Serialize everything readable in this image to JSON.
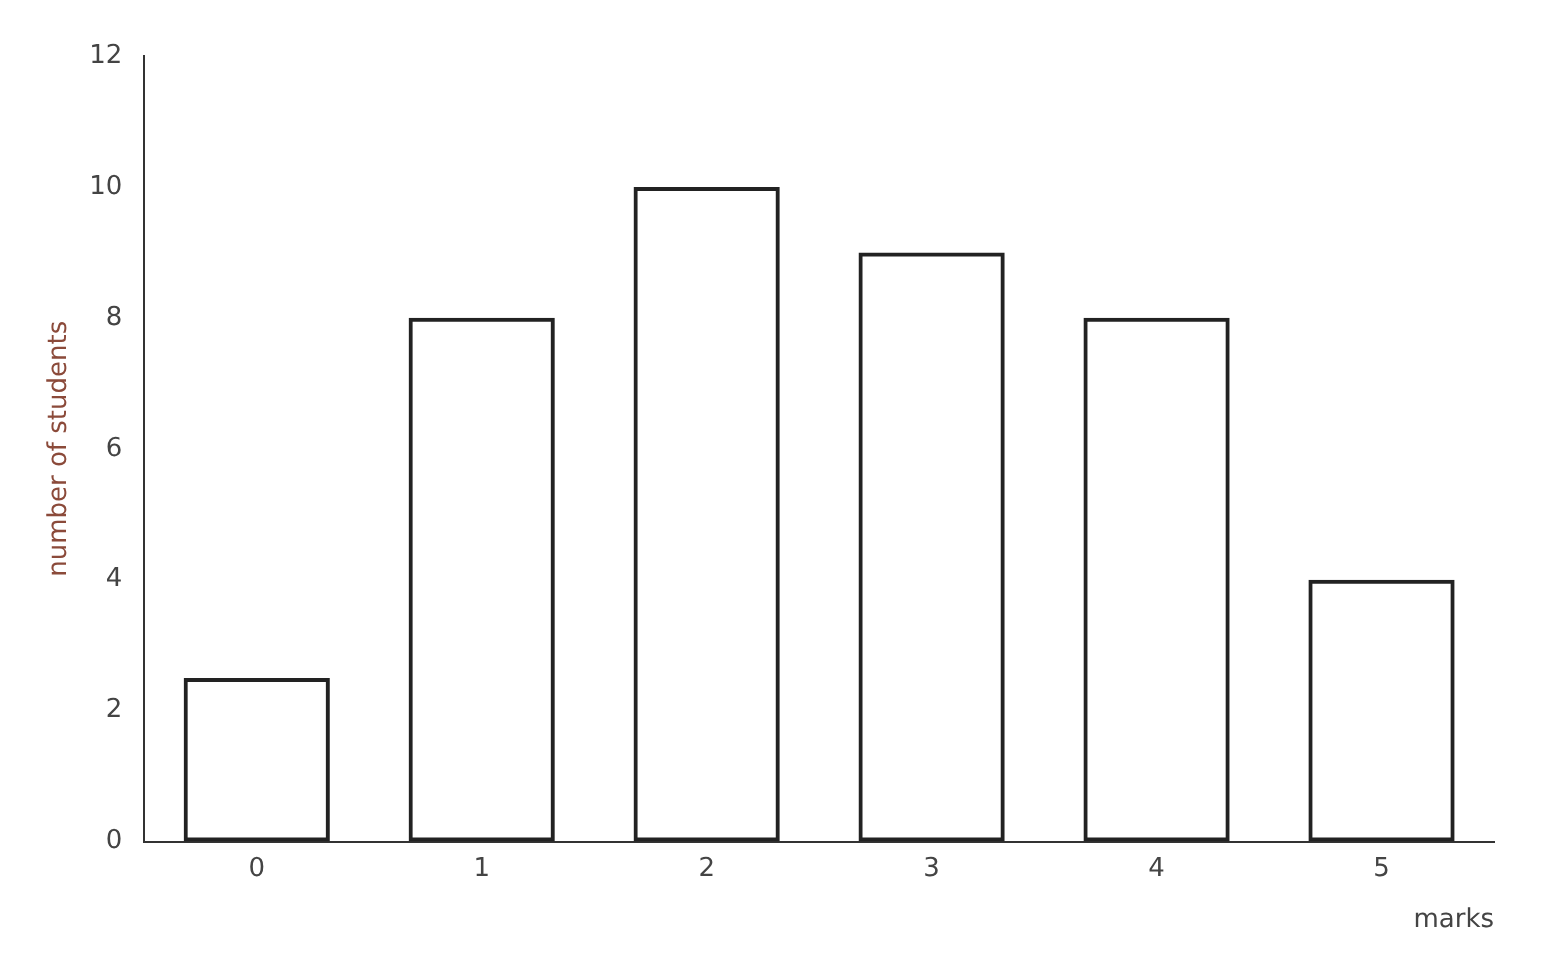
{
  "chart_data": {
    "type": "bar",
    "xlabel": "marks",
    "ylabel": "number of students",
    "categories": [
      "0",
      "1",
      "2",
      "3",
      "4",
      "5"
    ],
    "values": [
      2.5,
      8,
      10,
      9,
      8,
      4
    ],
    "color": "#222222",
    "ylim": [
      0,
      12
    ],
    "yticks": [
      0,
      2,
      4,
      6,
      8,
      10,
      12
    ],
    "grid": false,
    "legend": false
  }
}
